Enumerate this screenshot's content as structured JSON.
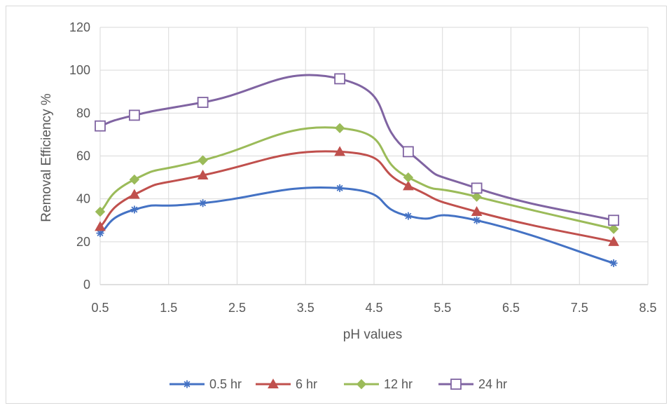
{
  "chart_data": {
    "type": "scatter",
    "title": "",
    "xlabel": "pH values",
    "ylabel": "Removal Efficiency %",
    "xlim": [
      0.5,
      8.5
    ],
    "ylim": [
      0,
      120
    ],
    "xticks": [
      "0.5",
      "1.5",
      "2.5",
      "3.5",
      "4.5",
      "5.5",
      "6.5",
      "7.5",
      "8.5"
    ],
    "yticks": [
      "0",
      "20",
      "40",
      "60",
      "80",
      "100",
      "120"
    ],
    "grid": true,
    "smooth_lines": true,
    "legend_position": "bottom",
    "x": [
      0.5,
      1,
      2,
      4,
      5,
      6,
      8
    ],
    "series": [
      {
        "name": "0.5 hr",
        "color": "#4472c4",
        "marker": "asterisk",
        "values": [
          24,
          35,
          38,
          45,
          32,
          30,
          10
        ]
      },
      {
        "name": "6 hr",
        "color": "#c0504d",
        "marker": "triangle",
        "values": [
          27,
          42,
          51,
          62,
          46,
          34,
          20
        ]
      },
      {
        "name": "12 hr",
        "color": "#9bbb59",
        "marker": "diamond",
        "values": [
          34,
          49,
          58,
          73,
          50,
          41,
          26
        ]
      },
      {
        "name": "24 hr",
        "color": "#8064a2",
        "marker": "square-open",
        "values": [
          74,
          79,
          85,
          96,
          62,
          45,
          30
        ]
      }
    ]
  }
}
